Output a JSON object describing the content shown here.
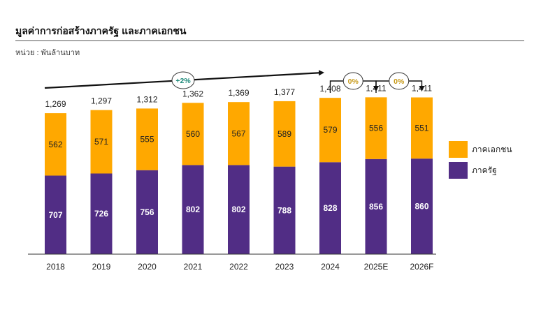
{
  "title": "มูลค่าการก่อสร้างภาครัฐ และภาคเอกชน",
  "unit": "หน่วย : พันล้านบาท",
  "colors": {
    "public": "#512D85",
    "private": "#FFA800",
    "axis": "#333333",
    "badge_up": "#1E8A7A",
    "badge_flat": "#C79A1A"
  },
  "chart_data": {
    "type": "bar",
    "stacked": true,
    "categories": [
      "2018",
      "2019",
      "2020",
      "2021",
      "2022",
      "2023",
      "2024",
      "2025E",
      "2026F"
    ],
    "series": [
      {
        "name": "ภาครัฐ",
        "values": [
          707,
          726,
          756,
          802,
          802,
          788,
          828,
          856,
          860
        ]
      },
      {
        "name": "ภาคเอกชน",
        "values": [
          562,
          571,
          555,
          560,
          567,
          589,
          579,
          556,
          551
        ]
      }
    ],
    "totals": [
      "1,269",
      "1,297",
      "1,312",
      "1,362",
      "1,369",
      "1,377",
      "1,408",
      "1,411",
      "1,411"
    ],
    "annotations": [
      {
        "label": "+2%",
        "from": "2018",
        "to": "2024"
      },
      {
        "label": "0%",
        "from": "2024",
        "to": "2025E"
      },
      {
        "label": "0%",
        "from": "2025E",
        "to": "2026F"
      }
    ],
    "legend_position": "right",
    "grid": false
  }
}
